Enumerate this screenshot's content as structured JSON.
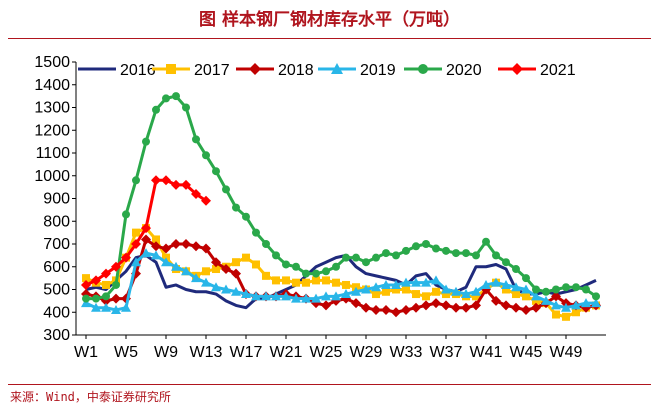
{
  "title": "图  样本钢厂钢材库存水平（万吨）",
  "source": "来源：Wind，中泰证券研究所",
  "chart_data": {
    "type": "line",
    "ylim": [
      300,
      1500
    ],
    "yticks": [
      300,
      400,
      500,
      600,
      700,
      800,
      900,
      1000,
      1100,
      1200,
      1300,
      1400,
      1500
    ],
    "xticks": [
      "W1",
      "W5",
      "W9",
      "W13",
      "W17",
      "W21",
      "W25",
      "W29",
      "W33",
      "W37",
      "W41",
      "W45",
      "W49"
    ],
    "xtick_weeks": [
      1,
      5,
      9,
      13,
      17,
      21,
      25,
      29,
      33,
      37,
      41,
      45,
      49
    ],
    "x_weeks": 52,
    "grid": false,
    "legend_position": "top",
    "series": [
      {
        "name": "2016",
        "color": "#1f2a7c",
        "marker": "none",
        "values": [
          500,
          510,
          500,
          540,
          580,
          640,
          650,
          620,
          510,
          520,
          500,
          490,
          490,
          480,
          450,
          430,
          420,
          460,
          460,
          480,
          500,
          520,
          560,
          600,
          620,
          640,
          650,
          600,
          570,
          560,
          550,
          540,
          520,
          560,
          570,
          520,
          500,
          490,
          510,
          600,
          600,
          610,
          590,
          500,
          480,
          480,
          490,
          480,
          490,
          500,
          520,
          540
        ]
      },
      {
        "name": "2017",
        "color": "#ffc000",
        "marker": "square",
        "values": [
          550,
          530,
          520,
          540,
          640,
          750,
          770,
          720,
          640,
          590,
          580,
          560,
          580,
          590,
          600,
          620,
          640,
          610,
          560,
          540,
          540,
          530,
          530,
          540,
          540,
          530,
          520,
          510,
          500,
          480,
          490,
          500,
          500,
          480,
          470,
          490,
          480,
          480,
          470,
          470,
          500,
          530,
          500,
          480,
          470,
          450,
          440,
          390,
          380,
          400,
          420,
          430
        ]
      },
      {
        "name": "2018",
        "color": "#c00000",
        "marker": "diamond",
        "values": [
          480,
          470,
          450,
          460,
          460,
          570,
          720,
          690,
          680,
          700,
          700,
          690,
          680,
          620,
          590,
          570,
          480,
          470,
          470,
          470,
          480,
          470,
          460,
          440,
          430,
          450,
          460,
          440,
          420,
          410,
          410,
          400,
          410,
          420,
          430,
          440,
          430,
          420,
          420,
          430,
          500,
          450,
          430,
          420,
          410,
          420,
          440,
          470,
          440,
          430,
          420,
          430
        ]
      },
      {
        "name": "2019",
        "color": "#29b6e8",
        "marker": "triangle",
        "values": [
          440,
          420,
          420,
          410,
          420,
          620,
          660,
          650,
          620,
          600,
          580,
          550,
          530,
          510,
          500,
          490,
          480,
          470,
          470,
          470,
          470,
          460,
          460,
          460,
          470,
          470,
          480,
          490,
          500,
          510,
          520,
          520,
          530,
          530,
          530,
          540,
          500,
          490,
          480,
          490,
          520,
          530,
          520,
          510,
          500,
          470,
          450,
          430,
          420,
          430,
          440,
          440
        ]
      },
      {
        "name": "2020",
        "color": "#2aa84a",
        "marker": "circle",
        "values": [
          460,
          460,
          470,
          520,
          830,
          980,
          1150,
          1290,
          1340,
          1350,
          1300,
          1160,
          1090,
          1020,
          940,
          860,
          820,
          750,
          700,
          650,
          610,
          600,
          570,
          570,
          580,
          600,
          640,
          640,
          620,
          640,
          660,
          650,
          670,
          690,
          700,
          680,
          670,
          660,
          660,
          650,
          710,
          650,
          620,
          590,
          550,
          500,
          490,
          500,
          510,
          510,
          500,
          470
        ]
      },
      {
        "name": "2021",
        "color": "#ff0000",
        "marker": "diamond",
        "values": [
          520,
          540,
          570,
          600,
          640,
          700,
          770,
          980,
          980,
          960,
          960,
          920,
          890
        ]
      }
    ]
  }
}
